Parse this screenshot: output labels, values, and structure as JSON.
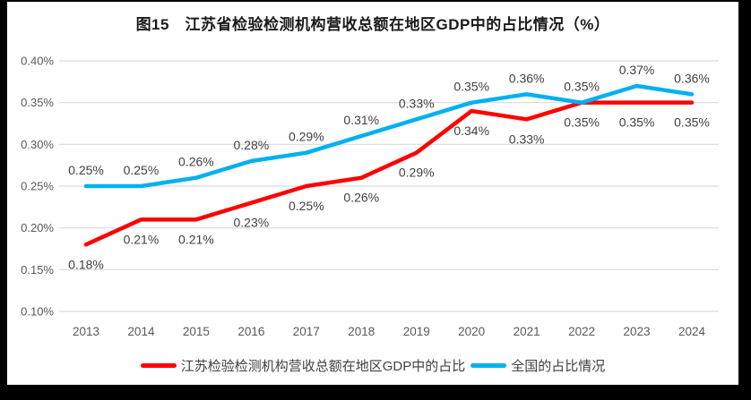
{
  "title": "图15　江苏省检验检测机构营收总额在地区GDP中的占比情况（%）",
  "colors": {
    "frame_background": "#000000",
    "panel_background": "#FFFFFF",
    "title_text": "#1A1A1A",
    "gridline": "#D9D9D9",
    "axis_text": "#595959",
    "data_label_text": "#404040",
    "series_jiangsu": "#FF0000",
    "series_national": "#00B0F0"
  },
  "chart_data": {
    "type": "line",
    "title": "图15　江苏省检验检测机构营收总额在地区GDP中的占比情况（%）",
    "x": [
      "2013",
      "2014",
      "2015",
      "2016",
      "2017",
      "2018",
      "2019",
      "2020",
      "2021",
      "2022",
      "2023",
      "2024"
    ],
    "series": [
      {
        "name": "江苏检验检测机构营收总额在地区GDP中的占比",
        "color": "#FF0000",
        "values": [
          0.18,
          0.21,
          0.21,
          0.23,
          0.25,
          0.26,
          0.29,
          0.34,
          0.33,
          0.35,
          0.35,
          0.35
        ],
        "point_labels": [
          "0.18%",
          "0.21%",
          "0.21%",
          "0.23%",
          "0.25%",
          "0.26%",
          "0.29%",
          "0.34%",
          "0.33%",
          "0.35%",
          "0.35%",
          "0.35%"
        ],
        "label_position": "below"
      },
      {
        "name": "全国的占比情况",
        "color": "#00B0F0",
        "values": [
          0.25,
          0.25,
          0.26,
          0.28,
          0.29,
          0.31,
          0.33,
          0.35,
          0.36,
          0.35,
          0.37,
          0.36
        ],
        "point_labels": [
          "0.25%",
          "0.25%",
          "0.26%",
          "0.28%",
          "0.29%",
          "0.31%",
          "0.33%",
          "0.35%",
          "0.36%",
          "0.35%",
          "0.37%",
          "0.36%"
        ],
        "label_position": "above"
      }
    ],
    "xlabel": "",
    "ylabel": "",
    "unit": "%",
    "ylim": [
      0.1,
      0.4
    ],
    "yticks": {
      "values": [
        0.4,
        0.35,
        0.3,
        0.25,
        0.2,
        0.15,
        0.1
      ],
      "labels": [
        "0.40%",
        "0.35%",
        "0.30%",
        "0.25%",
        "0.20%",
        "0.15%",
        "0.10%"
      ]
    },
    "grid": true,
    "legend_position": "bottom"
  },
  "legend": {
    "items": [
      {
        "label": "江苏检验检测机构营收总额在地区GDP中的占比",
        "color": "#FF0000"
      },
      {
        "label": "全国的占比情况",
        "color": "#00B0F0"
      }
    ]
  }
}
